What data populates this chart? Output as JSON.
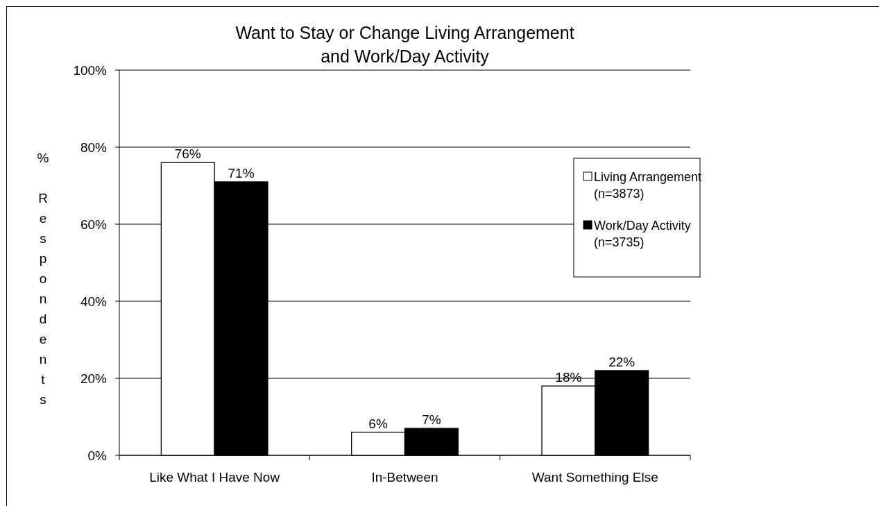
{
  "chart_data": {
    "type": "bar",
    "title": "Want to Stay or Change Living Arrangement\nand Work/Day Activity",
    "ylabel": "% Respondents",
    "categories": [
      "Like What I Have Now",
      "In-Between",
      "Want Something Else"
    ],
    "series": [
      {
        "name": "Living Arrangement (n=3873)",
        "color": "#ffffff",
        "values": [
          76,
          6,
          18
        ],
        "value_labels": [
          "76%",
          "6%",
          "18%"
        ]
      },
      {
        "name": "Work/Day Activity (n=3735)",
        "color": "#000000",
        "values": [
          71,
          7,
          22
        ],
        "value_labels": [
          "71%",
          "7%",
          "22%"
        ]
      }
    ],
    "ylim": [
      0,
      100
    ],
    "yticks": [
      {
        "value": 0,
        "label": "0%"
      },
      {
        "value": 20,
        "label": "20%"
      },
      {
        "value": 40,
        "label": "40%"
      },
      {
        "value": 60,
        "label": "60%"
      },
      {
        "value": 80,
        "label": "80%"
      },
      {
        "value": 100,
        "label": "100%"
      }
    ],
    "grid": "y",
    "legend": "right"
  }
}
